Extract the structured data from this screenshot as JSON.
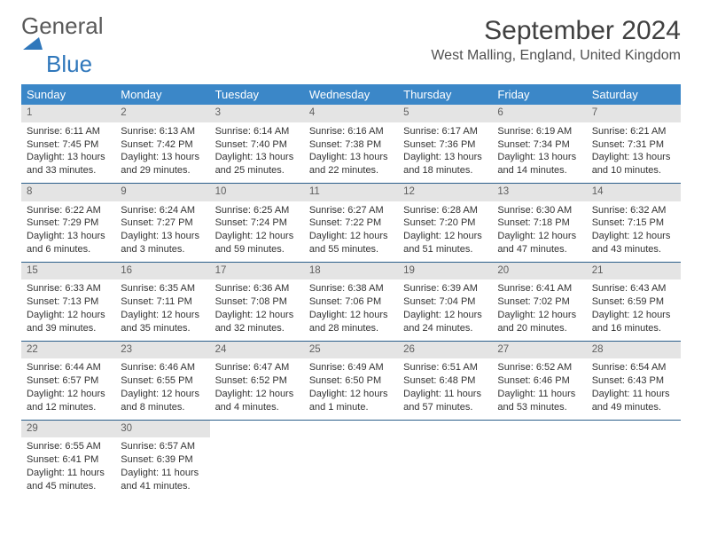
{
  "logo": {
    "line1": "General",
    "line2": "Blue"
  },
  "title": "September 2024",
  "location": "West Malling, England, United Kingdom",
  "colors": {
    "header_bg": "#3b87c8",
    "header_text": "#ffffff",
    "daynum_bg": "#e4e4e4",
    "week_border": "#2b5e8a",
    "logo_grey": "#595959",
    "logo_blue": "#2f77bb"
  },
  "day_names": [
    "Sunday",
    "Monday",
    "Tuesday",
    "Wednesday",
    "Thursday",
    "Friday",
    "Saturday"
  ],
  "weeks": [
    [
      {
        "n": "1",
        "sr": "Sunrise: 6:11 AM",
        "ss": "Sunset: 7:45 PM",
        "d1": "Daylight: 13 hours",
        "d2": "and 33 minutes."
      },
      {
        "n": "2",
        "sr": "Sunrise: 6:13 AM",
        "ss": "Sunset: 7:42 PM",
        "d1": "Daylight: 13 hours",
        "d2": "and 29 minutes."
      },
      {
        "n": "3",
        "sr": "Sunrise: 6:14 AM",
        "ss": "Sunset: 7:40 PM",
        "d1": "Daylight: 13 hours",
        "d2": "and 25 minutes."
      },
      {
        "n": "4",
        "sr": "Sunrise: 6:16 AM",
        "ss": "Sunset: 7:38 PM",
        "d1": "Daylight: 13 hours",
        "d2": "and 22 minutes."
      },
      {
        "n": "5",
        "sr": "Sunrise: 6:17 AM",
        "ss": "Sunset: 7:36 PM",
        "d1": "Daylight: 13 hours",
        "d2": "and 18 minutes."
      },
      {
        "n": "6",
        "sr": "Sunrise: 6:19 AM",
        "ss": "Sunset: 7:34 PM",
        "d1": "Daylight: 13 hours",
        "d2": "and 14 minutes."
      },
      {
        "n": "7",
        "sr": "Sunrise: 6:21 AM",
        "ss": "Sunset: 7:31 PM",
        "d1": "Daylight: 13 hours",
        "d2": "and 10 minutes."
      }
    ],
    [
      {
        "n": "8",
        "sr": "Sunrise: 6:22 AM",
        "ss": "Sunset: 7:29 PM",
        "d1": "Daylight: 13 hours",
        "d2": "and 6 minutes."
      },
      {
        "n": "9",
        "sr": "Sunrise: 6:24 AM",
        "ss": "Sunset: 7:27 PM",
        "d1": "Daylight: 13 hours",
        "d2": "and 3 minutes."
      },
      {
        "n": "10",
        "sr": "Sunrise: 6:25 AM",
        "ss": "Sunset: 7:24 PM",
        "d1": "Daylight: 12 hours",
        "d2": "and 59 minutes."
      },
      {
        "n": "11",
        "sr": "Sunrise: 6:27 AM",
        "ss": "Sunset: 7:22 PM",
        "d1": "Daylight: 12 hours",
        "d2": "and 55 minutes."
      },
      {
        "n": "12",
        "sr": "Sunrise: 6:28 AM",
        "ss": "Sunset: 7:20 PM",
        "d1": "Daylight: 12 hours",
        "d2": "and 51 minutes."
      },
      {
        "n": "13",
        "sr": "Sunrise: 6:30 AM",
        "ss": "Sunset: 7:18 PM",
        "d1": "Daylight: 12 hours",
        "d2": "and 47 minutes."
      },
      {
        "n": "14",
        "sr": "Sunrise: 6:32 AM",
        "ss": "Sunset: 7:15 PM",
        "d1": "Daylight: 12 hours",
        "d2": "and 43 minutes."
      }
    ],
    [
      {
        "n": "15",
        "sr": "Sunrise: 6:33 AM",
        "ss": "Sunset: 7:13 PM",
        "d1": "Daylight: 12 hours",
        "d2": "and 39 minutes."
      },
      {
        "n": "16",
        "sr": "Sunrise: 6:35 AM",
        "ss": "Sunset: 7:11 PM",
        "d1": "Daylight: 12 hours",
        "d2": "and 35 minutes."
      },
      {
        "n": "17",
        "sr": "Sunrise: 6:36 AM",
        "ss": "Sunset: 7:08 PM",
        "d1": "Daylight: 12 hours",
        "d2": "and 32 minutes."
      },
      {
        "n": "18",
        "sr": "Sunrise: 6:38 AM",
        "ss": "Sunset: 7:06 PM",
        "d1": "Daylight: 12 hours",
        "d2": "and 28 minutes."
      },
      {
        "n": "19",
        "sr": "Sunrise: 6:39 AM",
        "ss": "Sunset: 7:04 PM",
        "d1": "Daylight: 12 hours",
        "d2": "and 24 minutes."
      },
      {
        "n": "20",
        "sr": "Sunrise: 6:41 AM",
        "ss": "Sunset: 7:02 PM",
        "d1": "Daylight: 12 hours",
        "d2": "and 20 minutes."
      },
      {
        "n": "21",
        "sr": "Sunrise: 6:43 AM",
        "ss": "Sunset: 6:59 PM",
        "d1": "Daylight: 12 hours",
        "d2": "and 16 minutes."
      }
    ],
    [
      {
        "n": "22",
        "sr": "Sunrise: 6:44 AM",
        "ss": "Sunset: 6:57 PM",
        "d1": "Daylight: 12 hours",
        "d2": "and 12 minutes."
      },
      {
        "n": "23",
        "sr": "Sunrise: 6:46 AM",
        "ss": "Sunset: 6:55 PM",
        "d1": "Daylight: 12 hours",
        "d2": "and 8 minutes."
      },
      {
        "n": "24",
        "sr": "Sunrise: 6:47 AM",
        "ss": "Sunset: 6:52 PM",
        "d1": "Daylight: 12 hours",
        "d2": "and 4 minutes."
      },
      {
        "n": "25",
        "sr": "Sunrise: 6:49 AM",
        "ss": "Sunset: 6:50 PM",
        "d1": "Daylight: 12 hours",
        "d2": "and 1 minute."
      },
      {
        "n": "26",
        "sr": "Sunrise: 6:51 AM",
        "ss": "Sunset: 6:48 PM",
        "d1": "Daylight: 11 hours",
        "d2": "and 57 minutes."
      },
      {
        "n": "27",
        "sr": "Sunrise: 6:52 AM",
        "ss": "Sunset: 6:46 PM",
        "d1": "Daylight: 11 hours",
        "d2": "and 53 minutes."
      },
      {
        "n": "28",
        "sr": "Sunrise: 6:54 AM",
        "ss": "Sunset: 6:43 PM",
        "d1": "Daylight: 11 hours",
        "d2": "and 49 minutes."
      }
    ],
    [
      {
        "n": "29",
        "sr": "Sunrise: 6:55 AM",
        "ss": "Sunset: 6:41 PM",
        "d1": "Daylight: 11 hours",
        "d2": "and 45 minutes."
      },
      {
        "n": "30",
        "sr": "Sunrise: 6:57 AM",
        "ss": "Sunset: 6:39 PM",
        "d1": "Daylight: 11 hours",
        "d2": "and 41 minutes."
      },
      {
        "empty": true
      },
      {
        "empty": true
      },
      {
        "empty": true
      },
      {
        "empty": true
      },
      {
        "empty": true
      }
    ]
  ]
}
